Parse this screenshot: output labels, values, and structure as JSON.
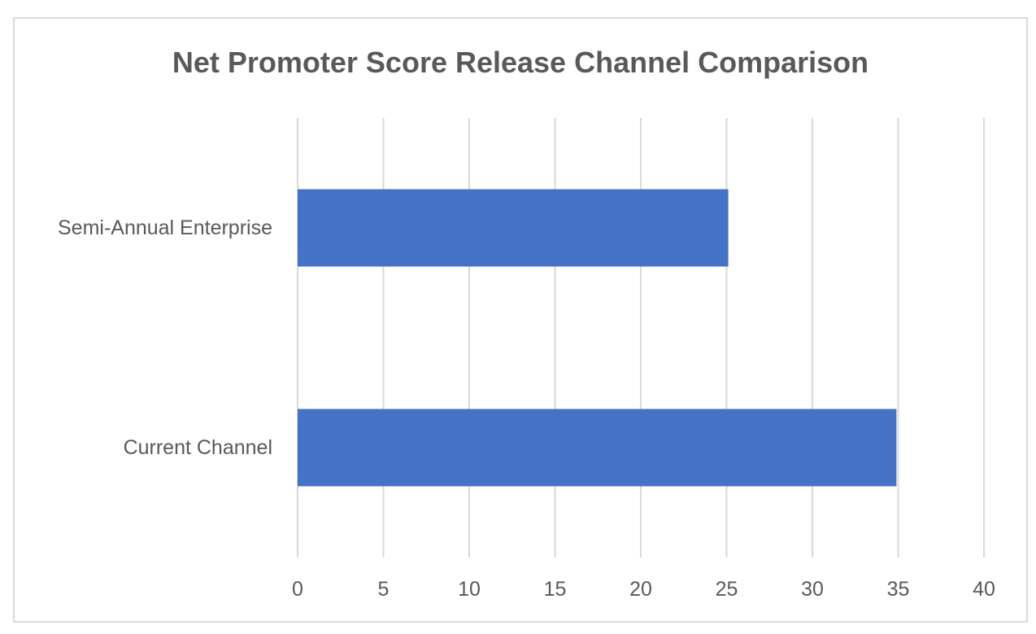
{
  "chart_data": {
    "type": "bar",
    "orientation": "horizontal",
    "title": "Net Promoter Score Release Channel Comparison",
    "categories": [
      "Semi-Annual Enterprise",
      "Current Channel"
    ],
    "values": [
      25.1,
      34.9
    ],
    "xlim": [
      0,
      40
    ],
    "x_ticks": [
      "0",
      "5",
      "10",
      "15",
      "20",
      "25",
      "30",
      "35",
      "40"
    ],
    "grid": "vertical",
    "legend": "none",
    "bar_color": "#4472c4",
    "grid_color": "#d9d9d9",
    "text_color": "#595959"
  }
}
